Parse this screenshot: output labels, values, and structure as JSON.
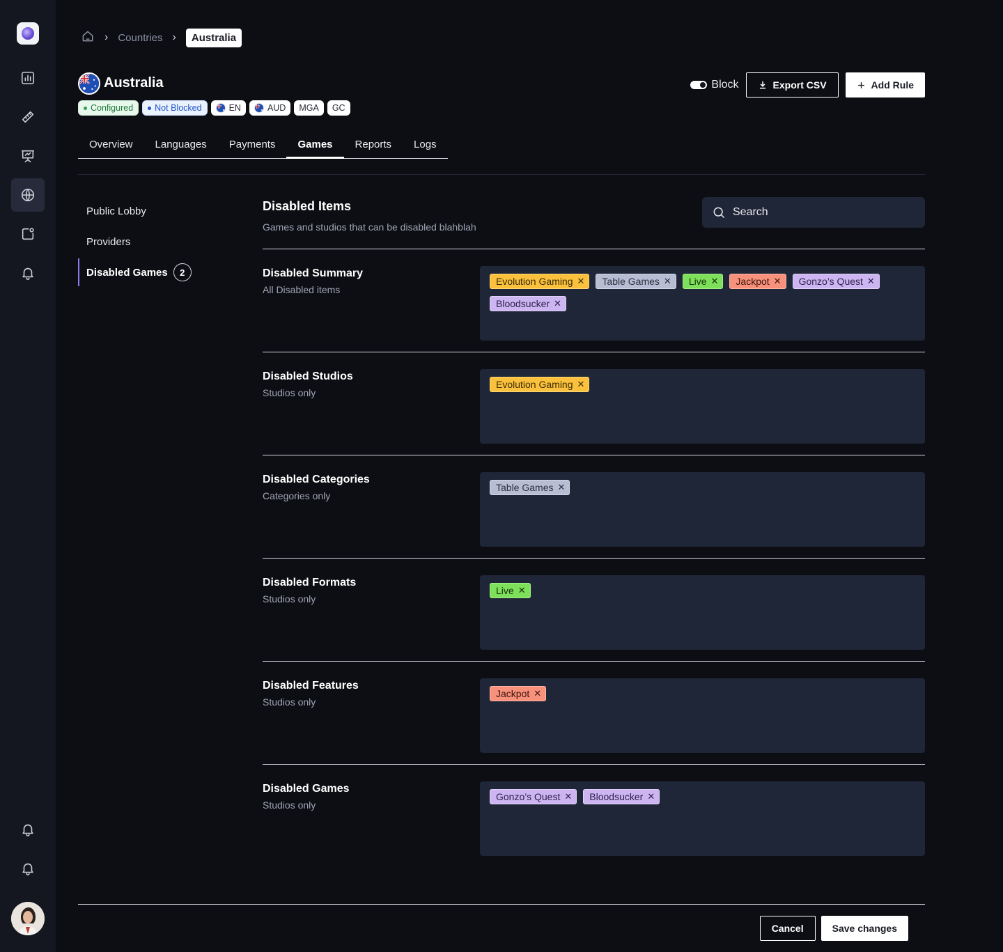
{
  "app": {
    "sidebar_icons": [
      "logo",
      "bar-chart-icon",
      "ruler-icon",
      "presentation-icon",
      "globe-icon",
      "notification-square-icon",
      "bell-icon",
      "bell-icon",
      "bell-icon",
      "avatar"
    ],
    "accent": "#8a7cf0"
  },
  "breadcrumb": {
    "items": [
      "Countries",
      "Australia"
    ]
  },
  "header": {
    "title": "Australia",
    "badges": {
      "configured": "Configured",
      "not_blocked": "Not Blocked",
      "language": "EN",
      "currency": "AUD",
      "license1": "MGA",
      "license2": "GC"
    },
    "block_label": "Block",
    "export_label": "Export CSV",
    "add_rule_label": "Add Rule"
  },
  "tabs": [
    "Overview",
    "Languages",
    "Payments",
    "Games",
    "Reports",
    "Logs"
  ],
  "active_tab": "Games",
  "subnav": {
    "items": [
      "Public Lobby",
      "Providers",
      "Disabled Games"
    ],
    "disabled_count": "2"
  },
  "section": {
    "title": "Disabled Items",
    "subtitle": "Games and studios that can be disabled blahblah",
    "search_placeholder": "Search"
  },
  "tag_colors": {
    "studio": "#fbc13c",
    "category": "#b7bdd3",
    "format": "#7ee05a",
    "feature": "#f8917c",
    "game": "#cdb5f2"
  },
  "rows": [
    {
      "title": "Disabled Summary",
      "subtitle": "All Disabled items",
      "tags": [
        {
          "label": "Evolution Gaming",
          "kind": "studio"
        },
        {
          "label": "Table Games",
          "kind": "category"
        },
        {
          "label": "Live",
          "kind": "format"
        },
        {
          "label": "Jackpot",
          "kind": "feature"
        },
        {
          "label": "Gonzo’s Quest",
          "kind": "game"
        },
        {
          "label": "Bloodsucker",
          "kind": "game"
        }
      ]
    },
    {
      "title": "Disabled Studios",
      "subtitle": "Studios only",
      "tags": [
        {
          "label": "Evolution Gaming",
          "kind": "studio"
        }
      ]
    },
    {
      "title": "Disabled Categories",
      "subtitle": "Categories only",
      "tags": [
        {
          "label": "Table Games",
          "kind": "category"
        }
      ]
    },
    {
      "title": "Disabled Formats",
      "subtitle": "Studios only",
      "tags": [
        {
          "label": "Live",
          "kind": "format"
        }
      ]
    },
    {
      "title": "Disabled Features",
      "subtitle": "Studios only",
      "tags": [
        {
          "label": "Jackpot",
          "kind": "feature"
        }
      ]
    },
    {
      "title": "Disabled Games",
      "subtitle": "Studios only",
      "tags": [
        {
          "label": "Gonzo’s Quest",
          "kind": "game"
        },
        {
          "label": "Bloodsucker",
          "kind": "game"
        }
      ]
    }
  ],
  "footer": {
    "cancel_label": "Cancel",
    "save_label": "Save changes"
  }
}
